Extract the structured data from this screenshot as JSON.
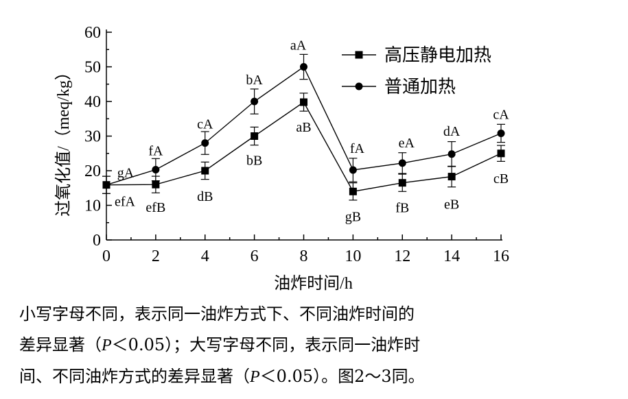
{
  "chart_data": {
    "type": "line",
    "xlabel": "油炸时间/h",
    "ylabel": "过氧化值/（meq/kg）",
    "xlim": [
      0,
      16
    ],
    "ylim": [
      0,
      60
    ],
    "xticks": [
      0,
      2,
      4,
      6,
      8,
      10,
      12,
      14,
      16
    ],
    "yticks": [
      0,
      10,
      20,
      30,
      40,
      50,
      60
    ],
    "grid": false,
    "legend_position": "top-right",
    "x": [
      0,
      2,
      4,
      6,
      8,
      10,
      12,
      14,
      16
    ],
    "series": [
      {
        "name": "高压静电加热",
        "marker": "square",
        "values": [
          15.9,
          16.0,
          20.0,
          30.0,
          39.8,
          14.0,
          16.5,
          18.3,
          25.0
        ],
        "errors": [
          2.5,
          2.4,
          2.5,
          2.6,
          2.6,
          2.5,
          2.5,
          3.0,
          2.3
        ],
        "labels": [
          "efA",
          "efB",
          "dB",
          "bB",
          "aB",
          "gB",
          "fB",
          "eB",
          "cB"
        ]
      },
      {
        "name": "普通加热",
        "marker": "circle",
        "values": [
          15.9,
          20.3,
          28.0,
          40.0,
          50.0,
          20.2,
          22.2,
          24.8,
          30.8
        ],
        "errors": [
          2.5,
          3.2,
          3.3,
          3.6,
          3.6,
          3.4,
          3.0,
          3.6,
          2.6
        ],
        "labels": [
          "gA",
          "fA",
          "cA",
          "bA",
          "aA",
          "fA",
          "eA",
          "dA",
          "cA"
        ]
      }
    ]
  },
  "caption": {
    "line1": "小写字母不同，表示同一油炸方式下、不同油炸时间的",
    "line2_a": "差异显著（",
    "p_symbol": "P",
    "line2_b": "＜0.05）；大写字母不同，表示同一油炸时",
    "line3_a": "间、不同油炸方式的差异显著（",
    "line3_b": "＜0.05）。图2～3同。"
  }
}
